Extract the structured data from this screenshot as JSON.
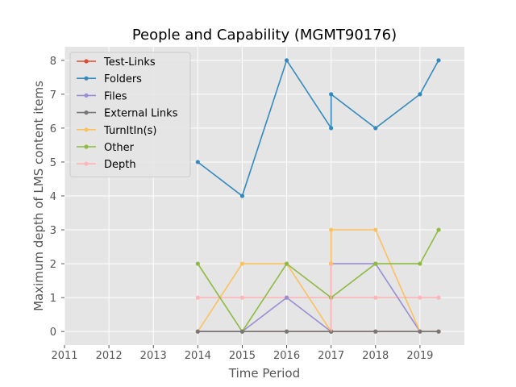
{
  "chart_data": {
    "type": "line",
    "title": "People and Capability (MGMT90176)",
    "xlabel": "Time Period",
    "ylabel": "Maximum depth of LMS content items",
    "xlim": [
      2011,
      2020
    ],
    "ylim": [
      -0.4,
      8.4
    ],
    "x_ticks": [
      2011,
      2012,
      2013,
      2014,
      2015,
      2016,
      2017,
      2018,
      2019
    ],
    "y_ticks": [
      0,
      1,
      2,
      3,
      4,
      5,
      6,
      7,
      8
    ],
    "grid": true,
    "legend_position": "upper-left",
    "x": [
      2014.0,
      2015.0,
      2016.0,
      2017.0,
      2017.0,
      2018.0,
      2019.0,
      2019.42
    ],
    "series": [
      {
        "name": "Test-Links",
        "color": "#e24a33",
        "values": [
          0,
          0,
          0,
          0,
          0,
          0,
          0,
          0
        ]
      },
      {
        "name": "Folders",
        "color": "#348abd",
        "values": [
          5,
          4,
          8,
          6,
          7,
          6,
          7,
          8
        ]
      },
      {
        "name": "Files",
        "color": "#988ed5",
        "values": [
          0,
          0,
          1,
          0,
          2,
          2,
          0,
          0
        ]
      },
      {
        "name": "External Links",
        "color": "#777777",
        "values": [
          0,
          0,
          0,
          0,
          0,
          0,
          0,
          0
        ]
      },
      {
        "name": "TurnItIn(s)",
        "color": "#fbc15e",
        "values": [
          0,
          2,
          2,
          0,
          3,
          3,
          0,
          0
        ],
        "x": [
          2014.0,
          2015.0,
          2016.0,
          2017.0,
          2017.0,
          2018.0,
          2019.0,
          2019.42
        ],
        "extra_points": [
          [
            2017.0,
            2
          ]
        ]
      },
      {
        "name": "Other",
        "color": "#8eba42",
        "values": [
          2,
          0,
          2,
          1,
          2,
          2,
          2,
          3
        ],
        "x": [
          2014.0,
          2015.0,
          2016.0,
          2017.0,
          2018.0,
          2018.0,
          2019.0,
          2019.42
        ]
      },
      {
        "name": "Depth",
        "color": "#ffb5b8",
        "values": [
          1,
          1,
          1,
          1,
          1,
          1,
          1,
          1
        ],
        "extra_points": [
          [
            2017.0,
            0
          ],
          [
            2017.0,
            2
          ]
        ]
      }
    ]
  }
}
